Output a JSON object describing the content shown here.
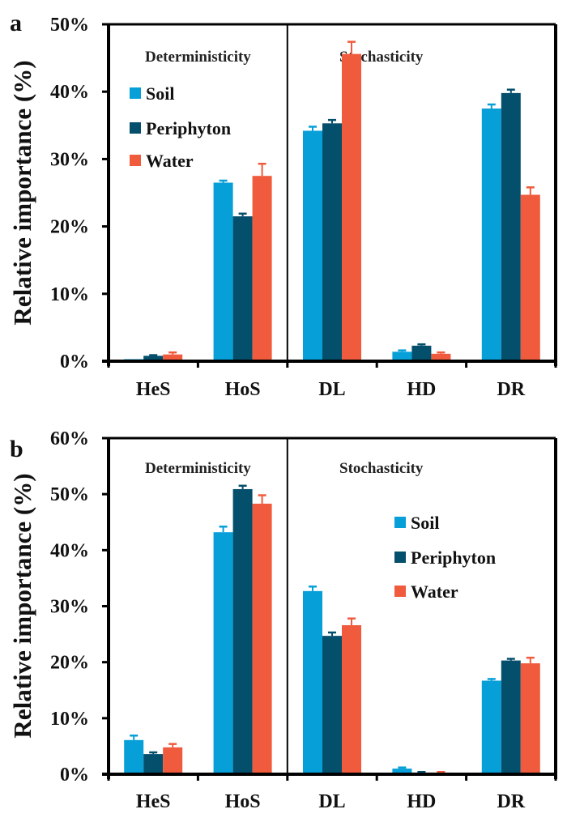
{
  "colors": {
    "Soil": "#069fd8",
    "Periphyton": "#044f6c",
    "Water": "#ef5b3c",
    "axis": "#000000"
  },
  "chart_data": [
    {
      "type": "bar",
      "panel": "a",
      "title": "",
      "xlabel": "",
      "ylabel": "Relative importance (%)",
      "ylim": [
        0,
        50
      ],
      "yticks": [
        0,
        10,
        20,
        30,
        40,
        50
      ],
      "ytick_labels": [
        "0%",
        "10%",
        "20%",
        "30%",
        "40%",
        "50%"
      ],
      "categories": [
        "HeS",
        "HoS",
        "DL",
        "HD",
        "DR"
      ],
      "section_labels": [
        {
          "text": "Deterministicity",
          "spans": [
            "HeS",
            "HoS"
          ]
        },
        {
          "text": "Stochasticity",
          "spans": [
            "DL",
            "HD",
            "DR"
          ]
        }
      ],
      "legend": {
        "placement": "top-left",
        "entries": [
          "Soil",
          "Periphyton",
          "Water"
        ]
      },
      "grid": false,
      "series": [
        {
          "name": "Soil",
          "values": [
            0.3,
            26.5,
            34.2,
            1.4,
            37.5
          ],
          "errors": [
            0.0,
            0.3,
            0.6,
            0.2,
            0.6
          ]
        },
        {
          "name": "Periphyton",
          "values": [
            0.8,
            21.5,
            35.3,
            2.3,
            39.8
          ],
          "errors": [
            0.1,
            0.4,
            0.5,
            0.2,
            0.5
          ]
        },
        {
          "name": "Water",
          "values": [
            1.0,
            27.5,
            45.6,
            1.1,
            24.7
          ],
          "errors": [
            0.3,
            1.8,
            1.8,
            0.2,
            1.1
          ]
        }
      ]
    },
    {
      "type": "bar",
      "panel": "b",
      "title": "",
      "xlabel": "",
      "ylabel": "Relative importance (%)",
      "ylim": [
        0,
        60
      ],
      "yticks": [
        0,
        10,
        20,
        30,
        40,
        50,
        60
      ],
      "ytick_labels": [
        "0%",
        "10%",
        "20%",
        "30%",
        "40%",
        "50%",
        "60%"
      ],
      "categories": [
        "HeS",
        "HoS",
        "DL",
        "HD",
        "DR"
      ],
      "section_labels": [
        {
          "text": "Deterministicity",
          "spans": [
            "HeS",
            "HoS"
          ]
        },
        {
          "text": "Stochasticity",
          "spans": [
            "DL",
            "HD",
            "DR"
          ]
        }
      ],
      "legend": {
        "placement": "center-right",
        "entries": [
          "Soil",
          "Periphyton",
          "Water"
        ]
      },
      "grid": false,
      "series": [
        {
          "name": "Soil",
          "values": [
            6.1,
            43.2,
            32.7,
            1.0,
            16.7
          ],
          "errors": [
            0.8,
            1.0,
            0.8,
            0.2,
            0.3
          ]
        },
        {
          "name": "Periphyton",
          "values": [
            3.6,
            50.9,
            24.7,
            0.3,
            20.3
          ],
          "errors": [
            0.3,
            0.6,
            0.6,
            0.1,
            0.3
          ]
        },
        {
          "name": "Water",
          "values": [
            4.8,
            48.3,
            26.6,
            0.3,
            19.8
          ],
          "errors": [
            0.6,
            1.5,
            1.2,
            0.1,
            1.0
          ]
        }
      ]
    }
  ]
}
